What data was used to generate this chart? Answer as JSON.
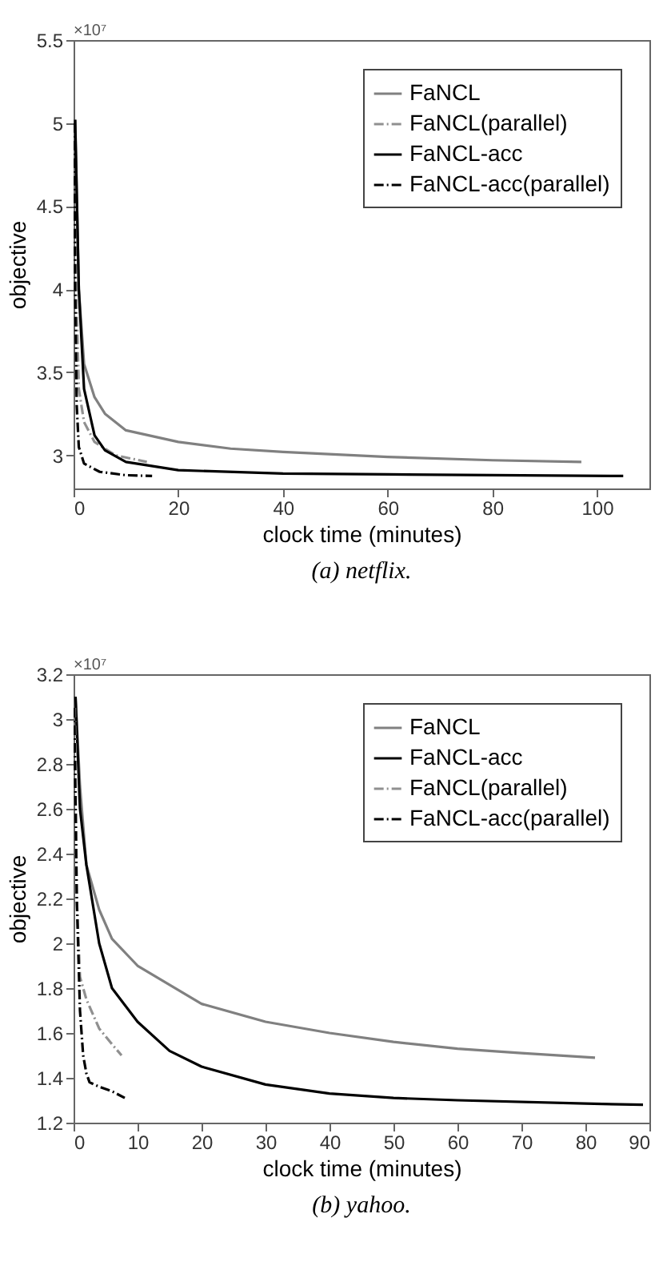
{
  "chart_data": [
    {
      "type": "line",
      "title": "(a) netflix.",
      "xlabel": "clock time (minutes)",
      "ylabel": "objective",
      "annotations": [
        "×10⁷"
      ],
      "xlim": [
        0,
        110
      ],
      "xticks": [
        0,
        20,
        40,
        60,
        80,
        100
      ],
      "ylim": [
        2.8,
        5.5
      ],
      "yticks": [
        3,
        3.5,
        4,
        4.5,
        5,
        5.5
      ],
      "legend": "top right",
      "grid": false,
      "series": [
        {
          "name": "FaNCL",
          "color": "#808080",
          "line_style": "solid",
          "x": [
            0.3,
            1,
            2,
            4,
            6,
            10,
            20,
            30,
            40,
            60,
            80,
            97
          ],
          "values": [
            5.02,
            4.0,
            3.55,
            3.35,
            3.25,
            3.15,
            3.08,
            3.04,
            3.02,
            2.99,
            2.97,
            2.96
          ]
        },
        {
          "name": "FaNCL(parallel)",
          "color": "#909090",
          "line_style": "dashdot",
          "x": [
            0.2,
            0.5,
            1,
            2,
            4,
            8,
            14
          ],
          "values": [
            5.0,
            4.0,
            3.4,
            3.2,
            3.08,
            3.0,
            2.96
          ]
        },
        {
          "name": "FaNCL-acc",
          "color": "#000000",
          "line_style": "solid",
          "x": [
            0.3,
            1,
            2,
            4,
            6,
            10,
            20,
            40,
            60,
            80,
            105
          ],
          "values": [
            5.02,
            4.0,
            3.4,
            3.12,
            3.03,
            2.96,
            2.91,
            2.89,
            2.885,
            2.88,
            2.875
          ]
        },
        {
          "name": "FaNCL-acc(parallel)",
          "color": "#000000",
          "line_style": "dashdot",
          "x": [
            0.1,
            0.3,
            0.6,
            1,
            2,
            5,
            10,
            15
          ],
          "values": [
            5.0,
            4.0,
            3.3,
            3.05,
            2.95,
            2.9,
            2.88,
            2.875
          ]
        }
      ]
    },
    {
      "type": "line",
      "title": "(b) yahoo.",
      "xlabel": "clock time (minutes)",
      "ylabel": "objective",
      "annotations": [
        "×10⁷"
      ],
      "xlim": [
        0,
        90
      ],
      "xticks": [
        0,
        10,
        20,
        30,
        40,
        50,
        60,
        70,
        80,
        90
      ],
      "ylim": [
        1.2,
        3.2
      ],
      "yticks": [
        1.2,
        1.4,
        1.6,
        1.8,
        2,
        2.2,
        2.4,
        2.6,
        2.8,
        3,
        3.2
      ],
      "legend": "top right",
      "grid": false,
      "series": [
        {
          "name": "FaNCL",
          "color": "#808080",
          "line_style": "solid",
          "x": [
            0.3,
            1,
            2,
            4,
            6,
            10,
            20,
            30,
            40,
            50,
            60,
            70,
            81.5
          ],
          "values": [
            3.1,
            2.7,
            2.35,
            2.15,
            2.02,
            1.9,
            1.73,
            1.65,
            1.6,
            1.56,
            1.53,
            1.51,
            1.49
          ]
        },
        {
          "name": "FaNCL-acc",
          "color": "#000000",
          "line_style": "solid",
          "x": [
            0.3,
            1,
            2,
            4,
            6,
            10,
            15,
            20,
            30,
            40,
            50,
            60,
            80,
            89
          ],
          "values": [
            3.1,
            2.6,
            2.35,
            2.0,
            1.8,
            1.65,
            1.52,
            1.45,
            1.37,
            1.33,
            1.31,
            1.3,
            1.285,
            1.28
          ]
        },
        {
          "name": "FaNCL(parallel)",
          "color": "#909090",
          "line_style": "dashdot",
          "x": [
            0.2,
            0.5,
            1,
            2,
            4,
            6,
            7.5
          ],
          "values": [
            3.05,
            2.2,
            1.85,
            1.75,
            1.62,
            1.55,
            1.5
          ]
        },
        {
          "name": "FaNCL-acc(parallel)",
          "color": "#000000",
          "line_style": "dashdot",
          "x": [
            0.1,
            0.5,
            1,
            1.5,
            2,
            2.5,
            4,
            6,
            8
          ],
          "values": [
            3.05,
            2.2,
            1.7,
            1.5,
            1.42,
            1.38,
            1.36,
            1.34,
            1.31
          ]
        }
      ]
    }
  ]
}
